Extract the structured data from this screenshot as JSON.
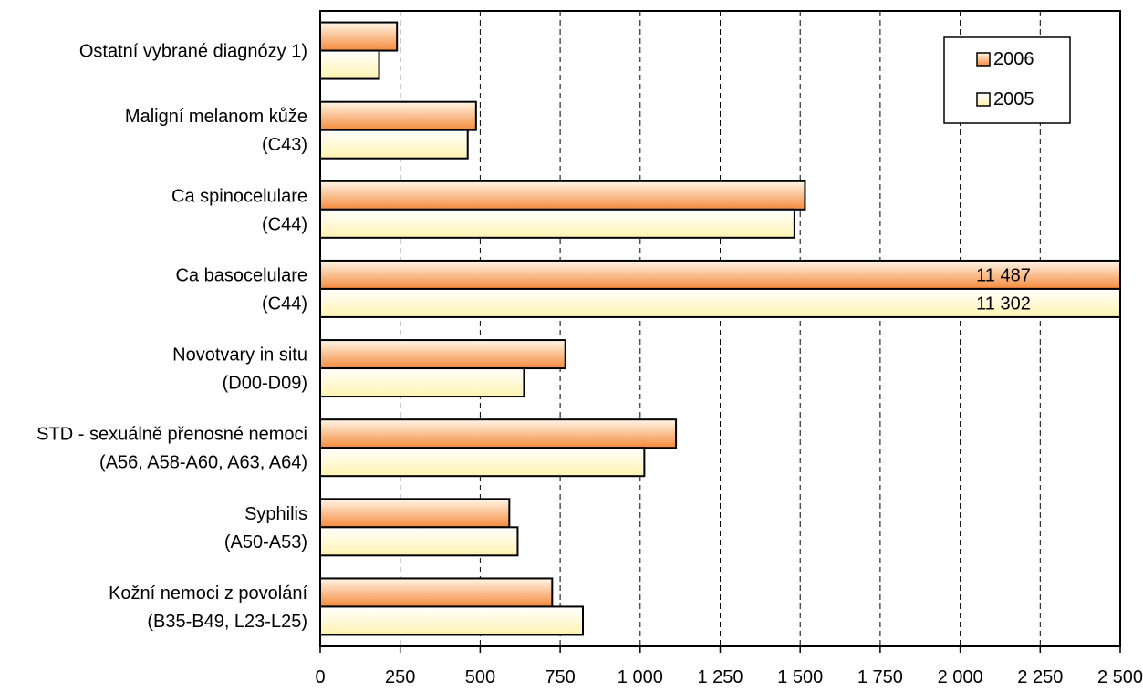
{
  "chart_data": {
    "type": "bar",
    "orientation": "horizontal",
    "categories": [
      [
        "Ostatní vybrané diagnózy 1)"
      ],
      [
        "Maligní melanom kůže",
        "(C43)"
      ],
      [
        "Ca spinocelulare",
        "(C44)"
      ],
      [
        "Ca basocelulare",
        "(C44)"
      ],
      [
        "Novotvary in situ",
        "(D00-D09)"
      ],
      [
        "STD - sexuálně přenosné nemoci",
        "(A56, A58-A60, A63, A64)"
      ],
      [
        "Syphilis",
        "(A50-A53)"
      ],
      [
        "Kožní nemoci z povolání",
        "(B35-B49, L23-L25)"
      ]
    ],
    "series": [
      {
        "name": "2006",
        "values": [
          240,
          487,
          1515,
          11487,
          766,
          1112,
          591,
          725
        ],
        "data_labels": [
          "",
          "",
          "",
          "11 487",
          "",
          "",
          "",
          ""
        ]
      },
      {
        "name": "2005",
        "values": [
          184,
          461,
          1482,
          11302,
          637,
          1013,
          617,
          821
        ],
        "data_labels": [
          "",
          "",
          "",
          "11 302",
          "",
          "",
          "",
          ""
        ]
      }
    ],
    "xlim": [
      0,
      2500
    ],
    "x_ticks": [
      "0",
      "250",
      "500",
      "750",
      "1 000",
      "1 250",
      "1 500",
      "1 750",
      "2 000",
      "2 250",
      "2 500"
    ],
    "grid": "vertical dashed",
    "legend_position": "top-right",
    "colors": {
      "2006_light": "#FFF6E8",
      "2006_dark": "#F58A3C",
      "2005_light": "#FFFFFF",
      "2005_dark": "#FFF3B0",
      "border": "#000000"
    }
  }
}
